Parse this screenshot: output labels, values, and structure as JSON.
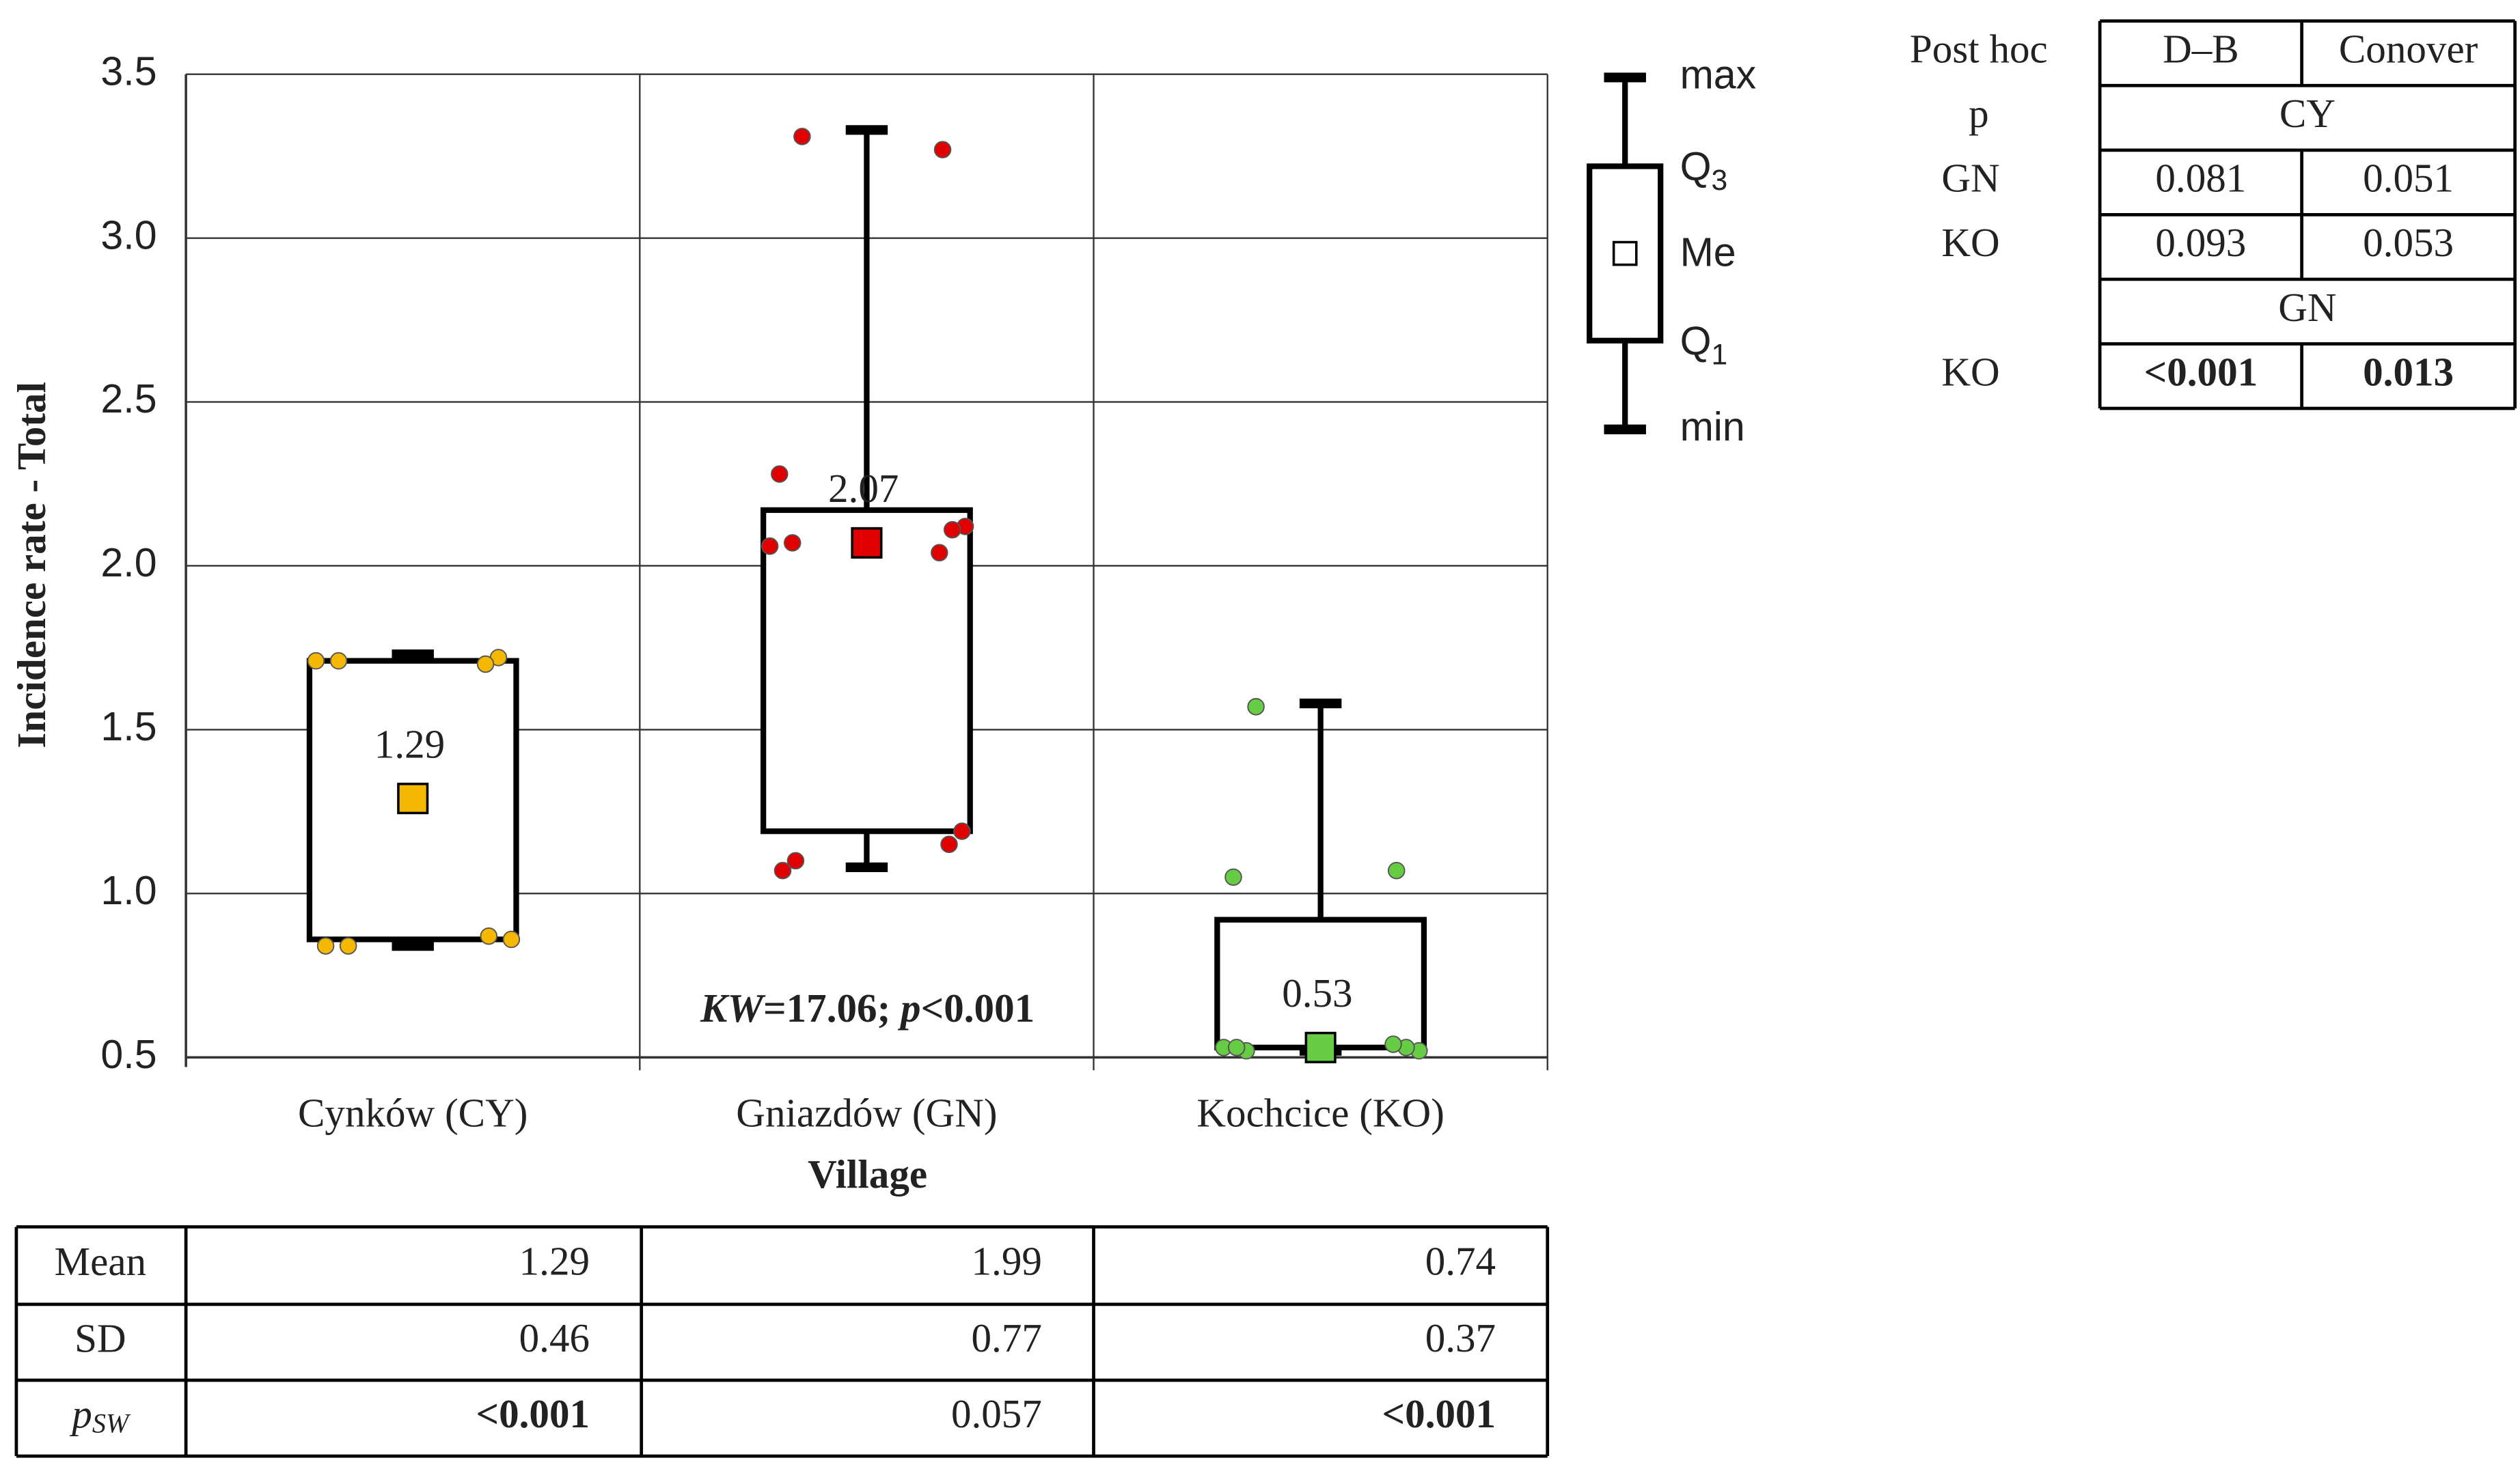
{
  "chart_data": {
    "type": "box",
    "y_label": "Incidence rate - Total",
    "x_label": "Village",
    "categories": [
      "Cynków (CY)",
      "Gniazdów (GN)",
      "Kochcice (KO)"
    ],
    "ylim": [
      0.5,
      3.5
    ],
    "yticks": [
      0.5,
      {
        "value": 1,
        "label": "1.0"
      },
      1.5,
      {
        "value": 2,
        "label": "2.0"
      },
      2.5,
      {
        "value": 3,
        "label": "3.0"
      },
      3.5
    ],
    "grid": true,
    "series": [
      {
        "color": "#f5b800",
        "min": 0.84,
        "q1": 0.86,
        "median": 1.29,
        "q3": 1.71,
        "max": 1.73,
        "points": [
          0.84,
          0.87,
          0.84,
          0.86,
          1.71,
          1.72,
          1.71,
          1.7
        ]
      },
      {
        "color": "#e00000",
        "min": 1.08,
        "q1": 1.19,
        "median": 2.07,
        "q3": 2.17,
        "max": 3.33,
        "points": [
          3.31,
          3.27,
          2.28,
          2.12,
          2.07,
          2.11,
          2.06,
          2.04,
          1.07,
          1.19,
          1.1,
          1.15
        ]
      },
      {
        "color": "#66cc44",
        "min": 0.52,
        "q1": 0.53,
        "median": 0.53,
        "q3": 0.92,
        "max": 1.58,
        "points": [
          1.57,
          1.07,
          1.05,
          0.52,
          0.52,
          0.53,
          0.53,
          0.54,
          0.53
        ]
      }
    ],
    "annotation": [
      "KW",
      "=17.06; ",
      "p",
      "<0.001"
    ],
    "legend_key": [
      [
        "max"
      ],
      [
        "Q",
        "3"
      ],
      [
        "Me"
      ],
      [
        "Q",
        "1"
      ],
      [
        "min"
      ]
    ]
  },
  "stats_table": {
    "rows": [
      {
        "label": [
          "Mean"
        ],
        "values": [
          1.29,
          1.99,
          0.74
        ],
        "bold": [
          false,
          false,
          false
        ]
      },
      {
        "label": [
          "SD"
        ],
        "values": [
          0.46,
          0.77,
          0.37
        ],
        "bold": [
          false,
          false,
          false
        ]
      },
      {
        "label": [
          "p",
          "SW"
        ],
        "values": [
          "<0.001",
          0.057,
          "<0.001"
        ],
        "bold": [
          true,
          false,
          true
        ]
      }
    ]
  },
  "post_hoc": {
    "header": [
      "Post hoc",
      "D–B",
      "Conover"
    ],
    "sub_header": "p",
    "groups": [
      {
        "name": "CY",
        "rows": [
          {
            "label": "GN",
            "values": [
              0.081,
              0.051
            ],
            "bold": [
              false,
              false
            ]
          },
          {
            "label": "KO",
            "values": [
              0.093,
              0.053
            ],
            "bold": [
              false,
              false
            ]
          }
        ]
      },
      {
        "name": "GN",
        "rows": [
          {
            "label": "KO",
            "values": [
              "<0.001",
              0.013
            ],
            "bold": [
              true,
              true
            ]
          }
        ]
      }
    ]
  }
}
